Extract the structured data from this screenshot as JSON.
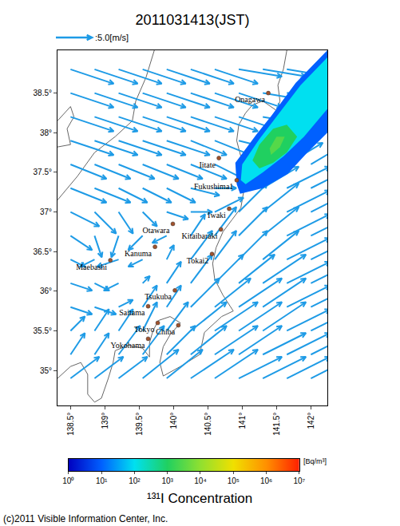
{
  "chart_data": {
    "type": "vector_map",
    "title": "2011031413(JST)",
    "xlim": [
      138.31,
      142.24
    ],
    "ylim": [
      34.56,
      39.04
    ],
    "xticks": [
      {
        "value": 138.5,
        "label": "138.5°"
      },
      {
        "value": 139,
        "label": "139°"
      },
      {
        "value": 139.5,
        "label": "139.5°"
      },
      {
        "value": 140,
        "label": "140°"
      },
      {
        "value": 140.5,
        "label": "140.5°"
      },
      {
        "value": 141,
        "label": "141°"
      },
      {
        "value": 141.5,
        "label": "141.5°"
      },
      {
        "value": 142,
        "label": "142°"
      }
    ],
    "yticks": [
      {
        "value": 35,
        "label": "35°"
      },
      {
        "value": 35.5,
        "label": "35.5°"
      },
      {
        "value": 36,
        "label": "36°"
      },
      {
        "value": 36.5,
        "label": "36.5°"
      },
      {
        "value": 37,
        "label": "37°"
      },
      {
        "value": 37.5,
        "label": "37.5°"
      },
      {
        "value": 38,
        "label": "38°"
      },
      {
        "value": 38.5,
        "label": "38.5°"
      }
    ],
    "reference_vector": {
      "speed": 5.0,
      "label": ":5.0[m/s]"
    },
    "wind": {
      "color": "#1e9be6",
      "lon": [
        138.5,
        138.85,
        139.2,
        139.55,
        139.9,
        140.25,
        140.6,
        140.95,
        141.3,
        141.65,
        142.0
      ],
      "lat": [
        38.8,
        38.5,
        38.2,
        37.9,
        37.6,
        37.3,
        37.0,
        36.7,
        36.4,
        36.1,
        35.8,
        35.5,
        35.2,
        34.9
      ],
      "u": [
        [
          6,
          6,
          6,
          6,
          6,
          6,
          6,
          6,
          6,
          6,
          6
        ],
        [
          6,
          6,
          6,
          6,
          6,
          6,
          6,
          6,
          6,
          6,
          6
        ],
        [
          6,
          6,
          6,
          6,
          6,
          6,
          6,
          6,
          6,
          5,
          5
        ],
        [
          6,
          6,
          6,
          6,
          6,
          5,
          5,
          4,
          4,
          4,
          4
        ],
        [
          5,
          5,
          5,
          5,
          5,
          5,
          4,
          3,
          4,
          5,
          5
        ],
        [
          5,
          5,
          4,
          4,
          4,
          4,
          3,
          4,
          5,
          6,
          6
        ],
        [
          4,
          3,
          2,
          2,
          3,
          3,
          4,
          4,
          5,
          6,
          6
        ],
        [
          3,
          1,
          -1,
          -2,
          -2,
          2,
          3,
          4,
          5,
          6,
          6
        ],
        [
          2,
          -2,
          -3,
          -2,
          1,
          3,
          3,
          4,
          5,
          6,
          6
        ],
        [
          3,
          2,
          -2,
          1,
          2,
          3,
          4,
          5,
          6,
          6,
          6
        ],
        [
          3,
          3,
          2,
          2,
          2,
          4,
          5,
          6,
          6,
          6,
          6
        ],
        [
          2,
          2,
          2,
          2,
          3,
          5,
          6,
          6,
          6,
          6,
          6
        ],
        [
          2,
          2,
          3,
          3,
          4,
          5,
          6,
          6,
          6,
          6,
          6
        ],
        [
          4,
          4,
          4,
          5,
          5,
          6,
          6,
          6,
          6,
          6,
          6
        ]
      ],
      "v": [
        [
          -2,
          -2,
          -2,
          -2,
          -2,
          -2,
          -2,
          -1,
          -1,
          -1,
          -1
        ],
        [
          -2,
          -2,
          -2,
          -2,
          -2,
          -2,
          -2,
          -2,
          -1,
          0,
          0
        ],
        [
          -2,
          -2,
          -2,
          -2,
          -2,
          -2,
          -2,
          -2,
          -1,
          1,
          2
        ],
        [
          -2,
          -2,
          -2,
          -2,
          -2,
          -2,
          -2,
          -1,
          2,
          3,
          3
        ],
        [
          -2,
          -2,
          -2,
          -2,
          -2,
          -2,
          -2,
          1,
          3,
          3,
          3
        ],
        [
          -2,
          -2,
          -2,
          -2,
          -2,
          -1,
          0,
          3,
          3,
          3,
          3
        ],
        [
          -2,
          -3,
          -3,
          -2,
          -1,
          0,
          2,
          4,
          4,
          3,
          3
        ],
        [
          -2,
          -3,
          -3,
          -2,
          -1,
          3,
          4,
          4,
          4,
          3,
          3
        ],
        [
          -1,
          -1,
          -1,
          -1,
          2,
          4,
          4,
          4,
          4,
          3,
          3
        ],
        [
          -1,
          -1,
          -1,
          1,
          3,
          4,
          4,
          4,
          4,
          3,
          3
        ],
        [
          -1,
          -1,
          1,
          3,
          3,
          4,
          4,
          4,
          4,
          3,
          3
        ],
        [
          2,
          3,
          3,
          4,
          4,
          4,
          4,
          4,
          4,
          3,
          3
        ],
        [
          3,
          3,
          4,
          4,
          4,
          4,
          4,
          4,
          3,
          3,
          3
        ],
        [
          3,
          3,
          3,
          4,
          4,
          4,
          4,
          3,
          3,
          3,
          3
        ]
      ]
    },
    "coastlines": {
      "color": "#666666",
      "lines": [
        {
          "lon": [
            141.65,
            141.6,
            141.52,
            141.55,
            141.5,
            141.3,
            141.15,
            141.05,
            140.95,
            140.92,
            140.98,
            141.03,
            141.02,
            140.98,
            140.85,
            140.72,
            140.62,
            140.57,
            140.6,
            140.72,
            140.87,
            140.7,
            140.45,
            140.38,
            140.1,
            139.85,
            139.8,
            139.85,
            139.95,
            140.1,
            139.95,
            139.78,
            139.7,
            139.65,
            139.65,
            139.55,
            139.35,
            139.15,
            139.12,
            139.05,
            138.95,
            138.85,
            138.75,
            138.75,
            138.65,
            138.5,
            138.31
          ],
          "lat": [
            39.04,
            38.8,
            38.6,
            38.4,
            38.28,
            38.4,
            38.35,
            38.25,
            38.1,
            37.9,
            37.7,
            37.5,
            37.25,
            37.05,
            36.9,
            36.75,
            36.55,
            36.35,
            36.15,
            35.95,
            35.75,
            35.68,
            35.48,
            35.2,
            35.05,
            34.93,
            35.1,
            35.3,
            35.45,
            35.6,
            35.68,
            35.63,
            35.5,
            35.35,
            35.17,
            35.28,
            35.32,
            35.25,
            35.1,
            34.9,
            34.65,
            34.6,
            34.7,
            34.95,
            35.1,
            35.05,
            34.9
          ]
        },
        {
          "lon": [
            139.72,
            139.6,
            139.45,
            139.4,
            139.15,
            138.85,
            138.6,
            138.35,
            138.31
          ],
          "lat": [
            39.04,
            38.7,
            38.4,
            38.15,
            37.95,
            37.75,
            37.45,
            37.2,
            37.15
          ]
        },
        {
          "lon": [
            138.31,
            138.5,
            138.55,
            138.45,
            138.5,
            138.31
          ],
          "lat": [
            38.15,
            38.33,
            38.2,
            38.05,
            37.85,
            37.82
          ]
        }
      ]
    },
    "plume": [
      {
        "level": 10,
        "lon": [
          140.92,
          140.9,
          141.2,
          141.43,
          141.78,
          142.19,
          142.24,
          142.24,
          141.95,
          141.66,
          141.3,
          140.97
        ],
        "lat": [
          37.35,
          37.62,
          37.97,
          38.22,
          38.63,
          38.99,
          39.04,
          38.0,
          37.75,
          37.48,
          37.3,
          37.23
        ]
      },
      {
        "level": 100,
        "lon": [
          140.98,
          141.0,
          141.25,
          141.5,
          141.85,
          142.24,
          142.24,
          141.9,
          141.6,
          141.3,
          141.05
        ],
        "lat": [
          37.4,
          37.6,
          37.92,
          38.2,
          38.6,
          38.95,
          38.3,
          37.95,
          37.7,
          37.5,
          37.35
        ]
      },
      {
        "level": 1000,
        "lon": [
          141.15,
          141.25,
          141.45,
          141.65,
          141.8,
          141.65,
          141.45,
          141.25
        ],
        "lat": [
          37.65,
          37.85,
          38.05,
          38.1,
          37.95,
          37.75,
          37.62,
          37.55
        ]
      },
      {
        "level": 3000,
        "lon": [
          141.4,
          141.5,
          141.62,
          141.55,
          141.42
        ],
        "lat": [
          37.8,
          37.95,
          37.95,
          37.82,
          37.72
        ]
      }
    ],
    "cities": {
      "color": "#a0522d",
      "names": [
        "Onagawa",
        "Iitate",
        "Fukushima1",
        "Iwaki",
        "Otawara",
        "Kitaibaraki",
        "Kanuma",
        "Maebashi",
        "Tokai2",
        "Tsukuba",
        "Saitama",
        "Tokyo",
        "Chiba",
        "Yokohama"
      ],
      "lon": [
        141.38,
        140.66,
        140.92,
        140.81,
        139.99,
        140.69,
        139.73,
        139.08,
        140.56,
        140.02,
        139.63,
        139.77,
        140.07,
        139.63
      ],
      "lat": [
        38.5,
        37.68,
        37.4,
        37.04,
        36.85,
        36.78,
        36.56,
        36.39,
        36.47,
        36.01,
        35.81,
        35.6,
        35.57,
        35.4
      ]
    },
    "colorbar": {
      "title": "¹³¹I Concentration",
      "unit": "[Bq/m³]",
      "range": [
        1,
        10000000
      ],
      "log": true,
      "ticks": [
        {
          "value": 1,
          "label": "10⁰"
        },
        {
          "value": 10,
          "label": "10¹"
        },
        {
          "value": 100,
          "label": "10²"
        },
        {
          "value": 1000,
          "label": "10³"
        },
        {
          "value": 10000,
          "label": "10⁴"
        },
        {
          "value": 100000,
          "label": "10⁵"
        },
        {
          "value": 1000000,
          "label": "10⁶"
        },
        {
          "value": 10000000,
          "label": "10⁷"
        }
      ],
      "colors": [
        "#0000c0",
        "#0060ff",
        "#00e0f0",
        "#20d060",
        "#90e030",
        "#f0e000",
        "#ff9000",
        "#ff2000"
      ]
    },
    "copyright": "(c)2011 Visible Information Center, Inc."
  }
}
